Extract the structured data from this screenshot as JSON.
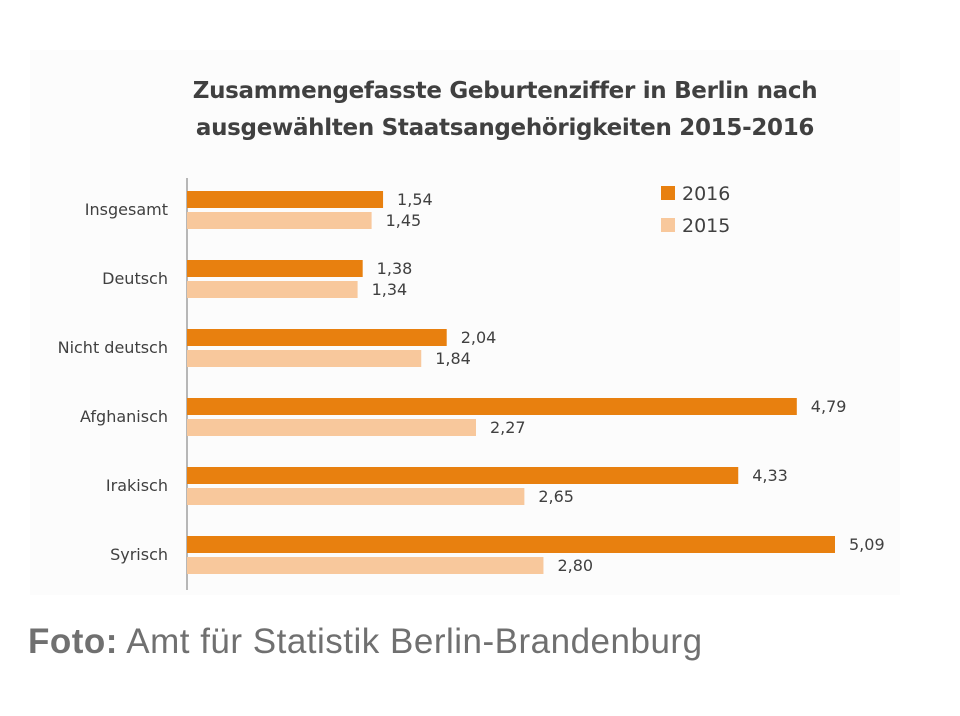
{
  "chart_data": {
    "type": "bar",
    "orientation": "horizontal",
    "title": "Zusammengefasste Geburtenziffer in Berlin nach ausgewählten Staatsangehörigkeiten 2015-2016",
    "title_lines": [
      "Zusammengefasste Geburtenziffer in Berlin nach",
      "ausgewählten Staatsangehörigkeiten 2015-2016"
    ],
    "categories": [
      "Insgesamt",
      "Deutsch",
      "Nicht deutsch",
      "Afghanisch",
      "Irakisch",
      "Syrisch"
    ],
    "series": [
      {
        "name": "2016",
        "color": "#E8800F",
        "values": [
          1.54,
          1.38,
          2.04,
          4.79,
          4.33,
          5.09
        ],
        "labels": [
          "1,54",
          "1,38",
          "2,04",
          "4,79",
          "4,33",
          "5,09"
        ]
      },
      {
        "name": "2015",
        "color": "#F8C89C",
        "values": [
          1.45,
          1.34,
          1.84,
          2.27,
          2.65,
          2.8
        ],
        "labels": [
          "1,45",
          "1,34",
          "1,84",
          "2,27",
          "2,65",
          "2,80"
        ]
      }
    ],
    "xlim": [
      0,
      5.1
    ],
    "grid": false,
    "x_axis_visible": false,
    "data_labels": true,
    "legend_position": "top-right"
  },
  "caption": {
    "prefix": "Foto:",
    "text": " Amt für Statistik Berlin-Brandenburg"
  }
}
